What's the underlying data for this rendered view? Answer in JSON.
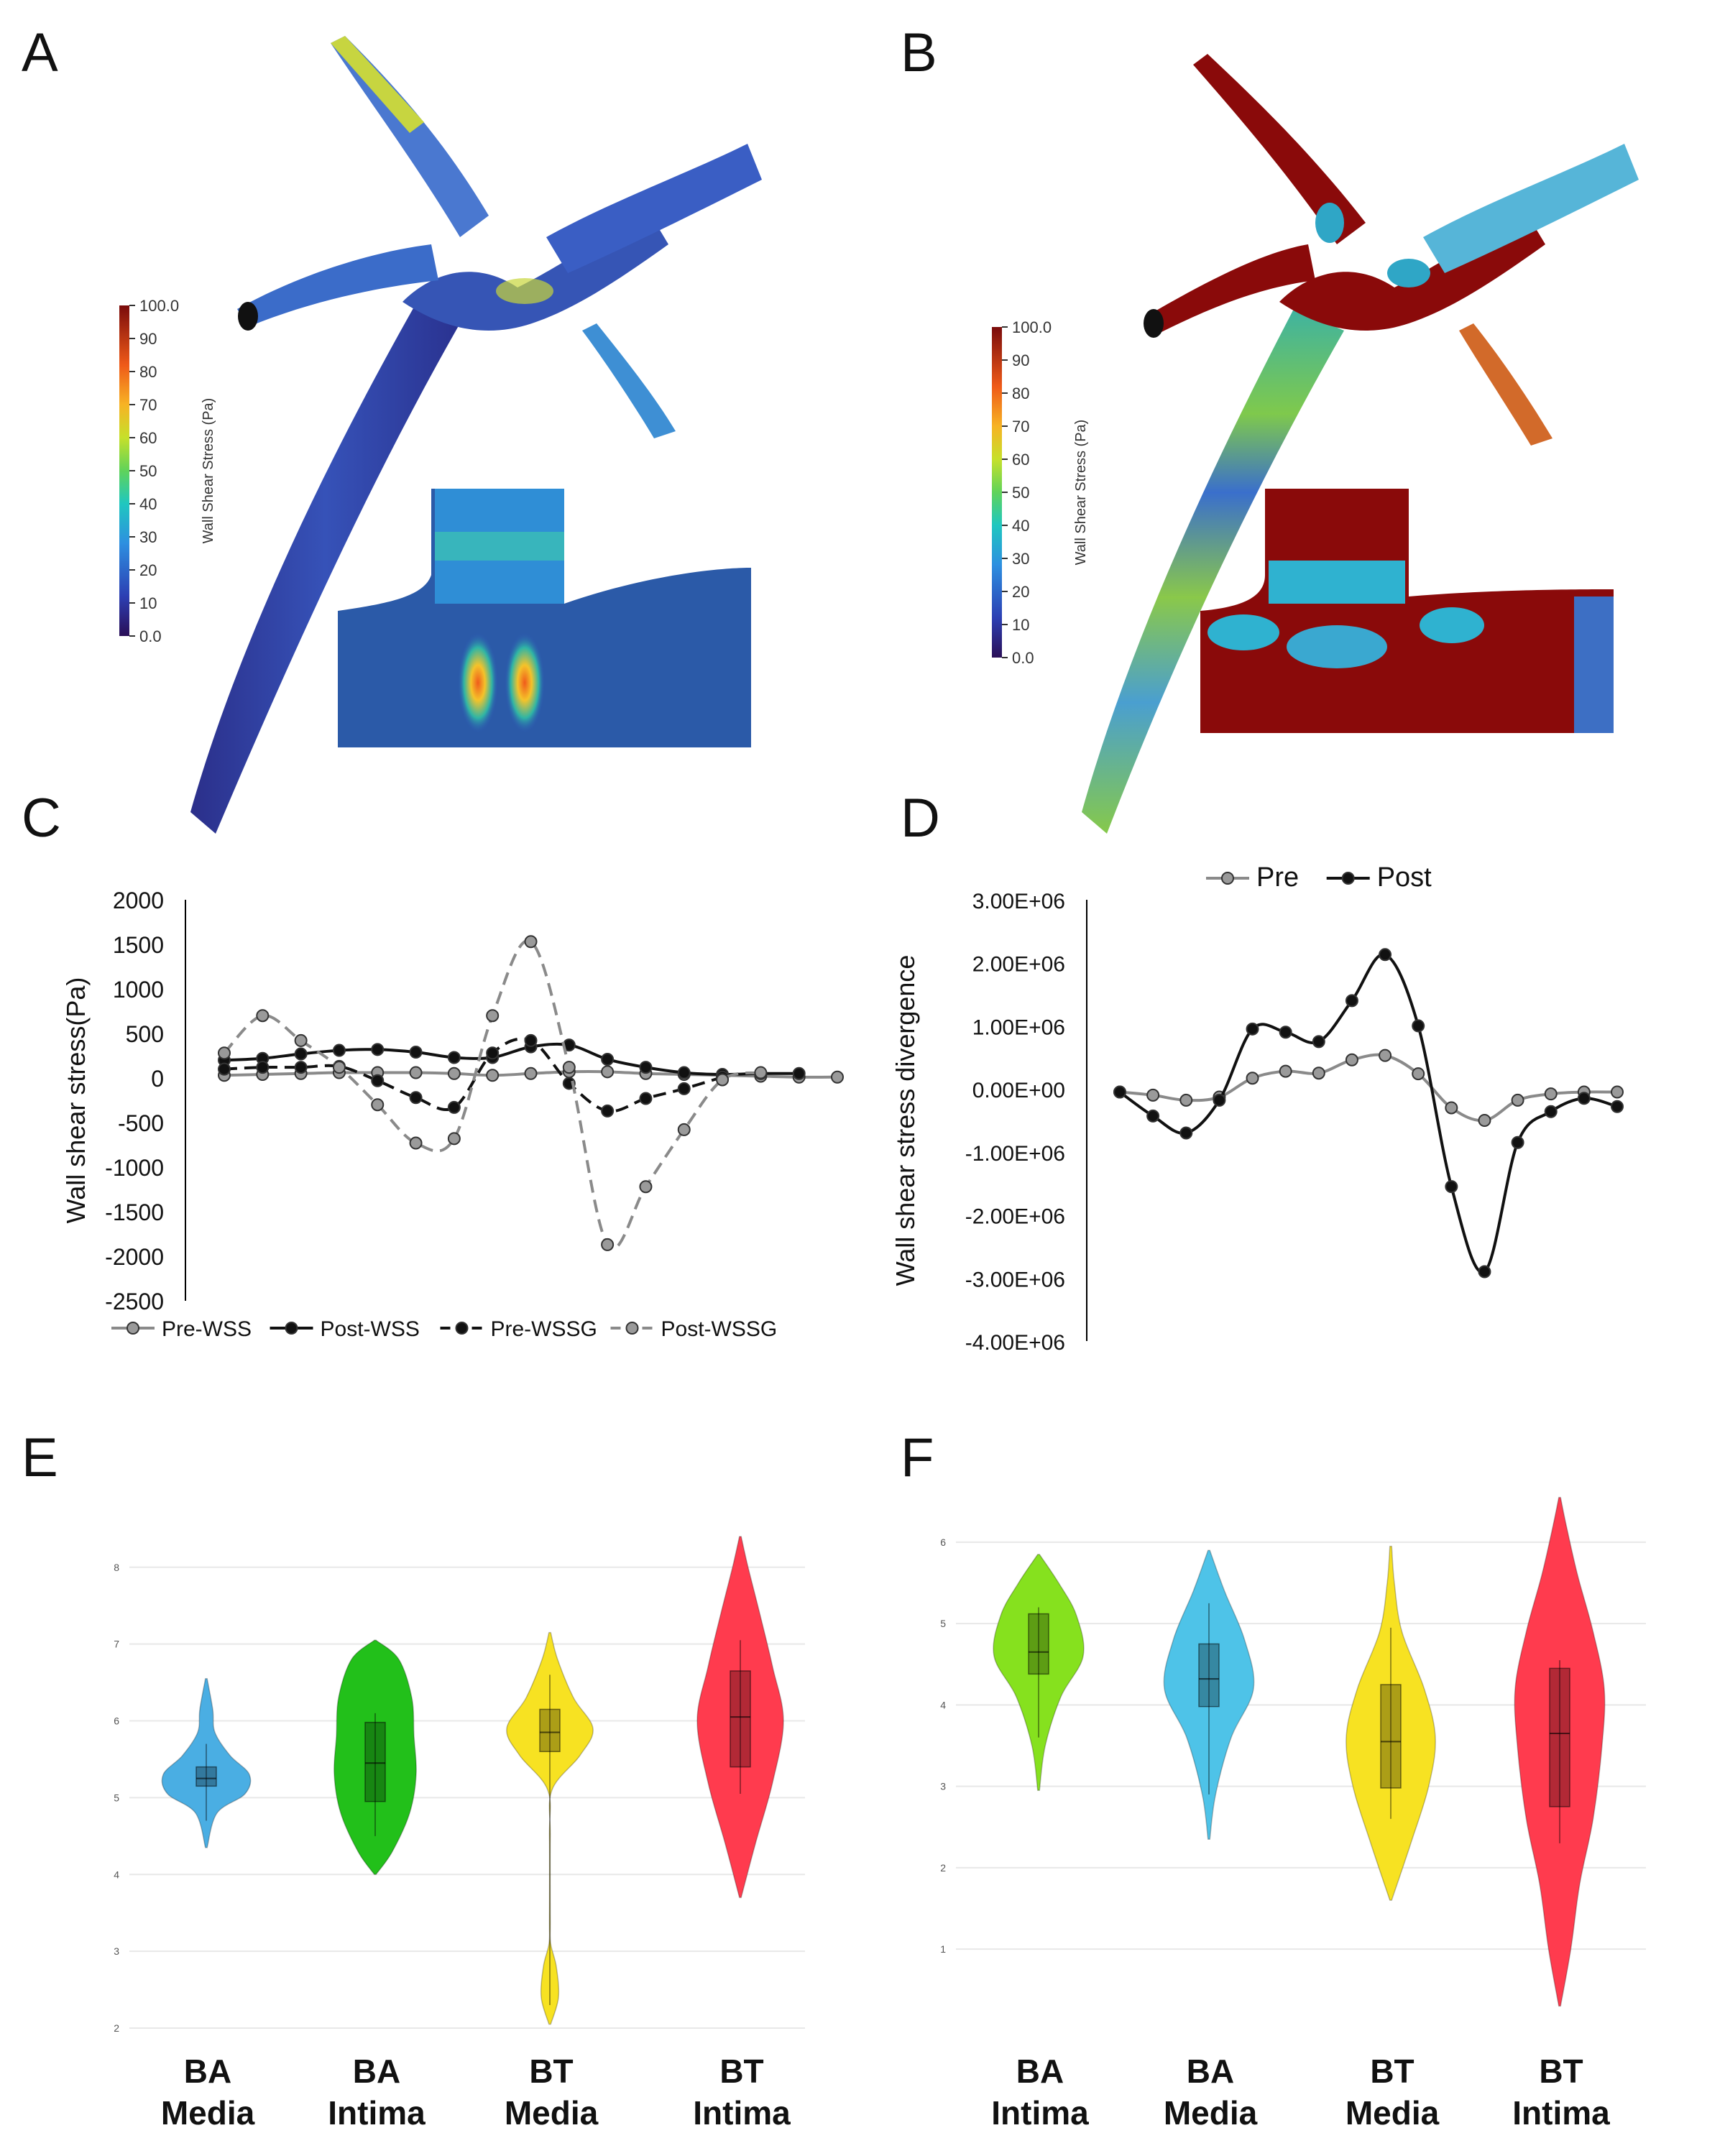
{
  "panels": {
    "A": {
      "label": "A",
      "colorbar": {
        "title": "Wall Shear Stress (Pa)",
        "ticks": [
          "100.0",
          "90",
          "80",
          "70",
          "60",
          "50",
          "40",
          "30",
          "20",
          "10",
          "0.0"
        ]
      }
    },
    "B": {
      "label": "B",
      "colorbar": {
        "title": "Wall Shear Stress (Pa)",
        "ticks": [
          "100.0",
          "90",
          "80",
          "70",
          "60",
          "50",
          "40",
          "30",
          "20",
          "10",
          "0.0"
        ]
      }
    },
    "C": {
      "label": "C"
    },
    "D": {
      "label": "D"
    },
    "E": {
      "label": "E"
    },
    "F": {
      "label": "F"
    }
  },
  "chart_data": [
    {
      "panel": "C",
      "type": "line",
      "ylabel": "Wall shear stress(Pa)",
      "ylim": [
        -2500,
        2000
      ],
      "yticks": [
        "2000",
        "1500",
        "1000",
        "500",
        "0",
        "-500",
        "-1000",
        "-1500",
        "-2000",
        "-2500"
      ],
      "x": [
        1,
        2,
        3,
        4,
        5,
        6,
        7,
        8,
        9,
        10,
        11,
        12,
        13,
        14,
        15,
        16,
        17
      ],
      "legend_position": "bottom",
      "series": [
        {
          "name": "Pre-WSS",
          "color": "#8a8a8a",
          "dash": "solid",
          "values": [
            30,
            40,
            50,
            60,
            60,
            60,
            50,
            30,
            50,
            70,
            70,
            50,
            40,
            30,
            20,
            10,
            10
          ]
        },
        {
          "name": "Post-WSS",
          "color": "#111111",
          "dash": "solid",
          "values": [
            200,
            220,
            270,
            310,
            320,
            290,
            230,
            230,
            350,
            370,
            210,
            120,
            60,
            40,
            50,
            50,
            null
          ]
        },
        {
          "name": "Pre-WSSG",
          "color": "#111111",
          "dash": "dashed",
          "values": [
            100,
            120,
            120,
            130,
            -30,
            -220,
            -330,
            280,
            420,
            -60,
            -370,
            -230,
            -120,
            10,
            null,
            null,
            null
          ]
        },
        {
          "name": "Post-WSSG",
          "color": "#8a8a8a",
          "dash": "dashed",
          "values": [
            280,
            700,
            420,
            120,
            -300,
            -730,
            -680,
            700,
            1530,
            120,
            -1870,
            -1220,
            -580,
            -20,
            60,
            null,
            null
          ]
        }
      ]
    },
    {
      "panel": "D",
      "type": "line",
      "ylabel": "Wall shear stress divergence",
      "ylim": [
        -4000000,
        3000000
      ],
      "yticks": [
        "3.00E+06",
        "2.00E+06",
        "1.00E+06",
        "0.00E+00",
        "-1.00E+06",
        "-2.00E+06",
        "-3.00E+06",
        "-4.00E+06"
      ],
      "x": [
        1,
        2,
        3,
        4,
        5,
        6,
        7,
        8,
        9,
        10,
        11,
        12,
        13,
        14,
        15,
        16
      ],
      "legend_position": "top",
      "series": [
        {
          "name": "Pre",
          "color": "#8a8a8a",
          "values": [
            -50000,
            -100000,
            -180000,
            -130000,
            170000,
            280000,
            250000,
            460000,
            530000,
            240000,
            -300000,
            -500000,
            -180000,
            -80000,
            -50000,
            -50000
          ]
        },
        {
          "name": "Post",
          "color": "#111111",
          "values": [
            -50000,
            -430000,
            -700000,
            -180000,
            950000,
            900000,
            750000,
            1400000,
            2130000,
            1000000,
            -1550000,
            -2900000,
            -850000,
            -360000,
            -150000,
            -280000
          ]
        }
      ]
    },
    {
      "panel": "E",
      "type": "violin",
      "ylim": [
        2,
        8.4
      ],
      "yticks": [
        "2",
        "3",
        "4",
        "5",
        "6",
        "7",
        "8"
      ],
      "groups": [
        {
          "line1": "BA",
          "line2": "Media",
          "color": "#4aaee3",
          "min": 4.35,
          "max": 6.55,
          "q1": 5.15,
          "median": 5.25,
          "q3": 5.4,
          "wlo": 4.7,
          "whi": 5.7,
          "profile": [
            [
              4.35,
              0.02
            ],
            [
              4.8,
              0.25
            ],
            [
              5.05,
              0.9
            ],
            [
              5.3,
              1.0
            ],
            [
              5.55,
              0.55
            ],
            [
              5.85,
              0.2
            ],
            [
              6.15,
              0.15
            ],
            [
              6.55,
              0.02
            ]
          ]
        },
        {
          "line1": "BA",
          "line2": "Intima",
          "color": "#22c01a",
          "min": 4.0,
          "max": 7.05,
          "q1": 4.95,
          "median": 5.45,
          "q3": 5.98,
          "wlo": 4.5,
          "whi": 6.1,
          "profile": [
            [
              4.0,
              0.02
            ],
            [
              4.3,
              0.4
            ],
            [
              4.8,
              0.8
            ],
            [
              5.3,
              0.95
            ],
            [
              5.8,
              0.9
            ],
            [
              6.3,
              0.85
            ],
            [
              6.8,
              0.55
            ],
            [
              7.05,
              0.02
            ]
          ]
        },
        {
          "line1": "BT",
          "line2": "Media",
          "color": "#f7e222",
          "min": 2.05,
          "max": 7.15,
          "q1": 5.6,
          "median": 5.85,
          "q3": 6.15,
          "wlo": 2.3,
          "whi": 6.6,
          "profile": [
            [
              2.05,
              0.02
            ],
            [
              2.4,
              0.2
            ],
            [
              2.8,
              0.15
            ],
            [
              3.1,
              0.02
            ],
            [
              3.4,
              0.01
            ],
            [
              4.5,
              0.01
            ],
            [
              5.1,
              0.05
            ],
            [
              5.55,
              0.7
            ],
            [
              5.9,
              1.0
            ],
            [
              6.3,
              0.55
            ],
            [
              6.8,
              0.18
            ],
            [
              7.15,
              0.02
            ]
          ]
        },
        {
          "line1": "BT",
          "line2": "Intima",
          "color": "#ff3b4e",
          "min": 3.7,
          "max": 8.4,
          "q1": 5.4,
          "median": 6.05,
          "q3": 6.65,
          "wlo": 5.05,
          "whi": 7.05,
          "profile": [
            [
              3.7,
              0.02
            ],
            [
              4.4,
              0.35
            ],
            [
              5.2,
              0.75
            ],
            [
              6.0,
              1.0
            ],
            [
              6.7,
              0.75
            ],
            [
              7.4,
              0.45
            ],
            [
              8.0,
              0.18
            ],
            [
              8.4,
              0.02
            ]
          ]
        }
      ]
    },
    {
      "panel": "F",
      "type": "violin",
      "ylim": [
        0.4,
        6.6
      ],
      "yticks": [
        "1",
        "2",
        "3",
        "4",
        "5",
        "6"
      ],
      "groups": [
        {
          "line1": "BA",
          "line2": "Intima",
          "color": "#86e11e",
          "min": 2.95,
          "max": 5.85,
          "q1": 4.38,
          "median": 4.65,
          "q3": 5.12,
          "wlo": 3.6,
          "whi": 5.2,
          "profile": [
            [
              2.95,
              0.02
            ],
            [
              3.5,
              0.15
            ],
            [
              4.1,
              0.5
            ],
            [
              4.6,
              1.0
            ],
            [
              5.1,
              0.85
            ],
            [
              5.5,
              0.45
            ],
            [
              5.85,
              0.02
            ]
          ]
        },
        {
          "line1": "BA",
          "line2": "Media",
          "color": "#4ec3e8",
          "min": 2.35,
          "max": 5.9,
          "q1": 3.98,
          "median": 4.32,
          "q3": 4.75,
          "wlo": 2.9,
          "whi": 5.25,
          "profile": [
            [
              2.35,
              0.02
            ],
            [
              2.9,
              0.15
            ],
            [
              3.6,
              0.5
            ],
            [
              4.2,
              1.0
            ],
            [
              4.8,
              0.8
            ],
            [
              5.4,
              0.35
            ],
            [
              5.9,
              0.02
            ]
          ]
        },
        {
          "line1": "BT",
          "line2": "Media",
          "color": "#f7e222",
          "min": 1.6,
          "max": 5.95,
          "q1": 2.98,
          "median": 3.55,
          "q3": 4.25,
          "wlo": 2.6,
          "whi": 4.95,
          "profile": [
            [
              1.6,
              0.02
            ],
            [
              2.3,
              0.45
            ],
            [
              3.0,
              0.85
            ],
            [
              3.6,
              1.0
            ],
            [
              4.2,
              0.75
            ],
            [
              4.9,
              0.25
            ],
            [
              5.5,
              0.08
            ],
            [
              5.95,
              0.02
            ]
          ]
        },
        {
          "line1": "BT",
          "line2": "Intima",
          "color": "#ff3b4e",
          "min": 0.3,
          "max": 6.55,
          "q1": 2.75,
          "median": 3.65,
          "q3": 4.45,
          "wlo": 2.3,
          "whi": 4.55,
          "profile": [
            [
              0.3,
              0.02
            ],
            [
              1.0,
              0.25
            ],
            [
              1.8,
              0.45
            ],
            [
              2.6,
              0.75
            ],
            [
              3.5,
              0.95
            ],
            [
              4.2,
              1.0
            ],
            [
              4.9,
              0.75
            ],
            [
              5.6,
              0.4
            ],
            [
              6.2,
              0.15
            ],
            [
              6.55,
              0.02
            ]
          ]
        }
      ]
    }
  ]
}
